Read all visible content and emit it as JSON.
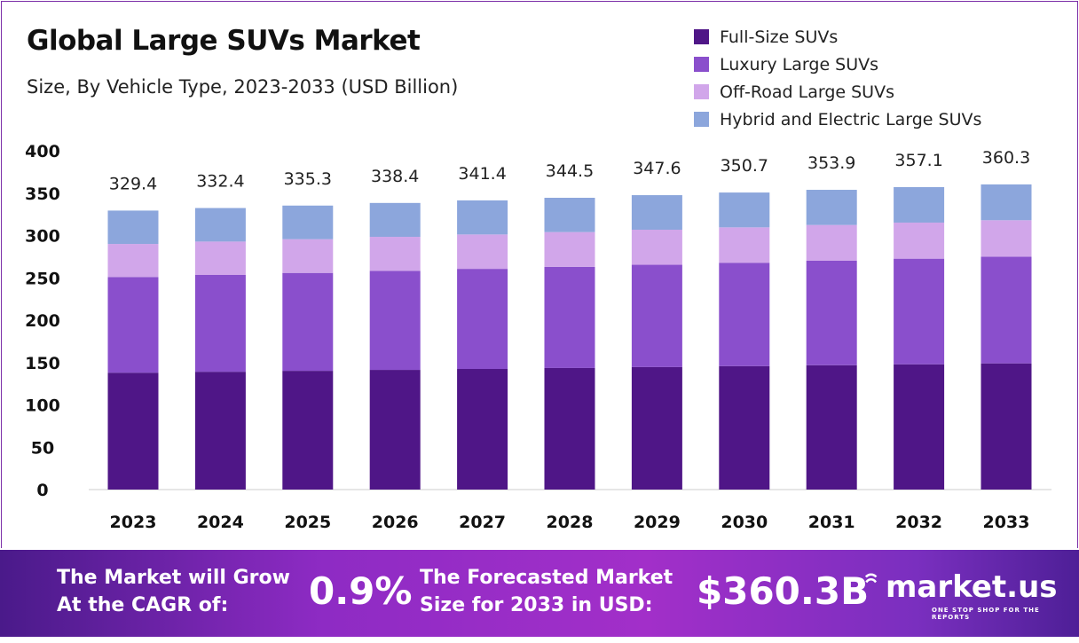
{
  "title": "Global Large SUVs Market",
  "subtitle": "Size, By Vehicle Type, 2023-2033 (USD Billion)",
  "chart_data": {
    "type": "bar",
    "stacked": true,
    "categories": [
      "2023",
      "2024",
      "2025",
      "2026",
      "2027",
      "2028",
      "2029",
      "2030",
      "2031",
      "2032",
      "2033"
    ],
    "totals": [
      329.4,
      332.4,
      335.3,
      338.4,
      341.4,
      344.5,
      347.6,
      350.7,
      353.9,
      357.1,
      360.3
    ],
    "series": [
      {
        "name": "Full-Size SUVs",
        "color": "#4f1687",
        "values": [
          138,
          139.1,
          140.2,
          141.3,
          142.4,
          143.5,
          144.6,
          145.7,
          146.8,
          147.9,
          149
        ]
      },
      {
        "name": "Luxury Large SUVs",
        "color": "#8a4fcc",
        "values": [
          113,
          114.3,
          115.6,
          116.9,
          118.2,
          119.5,
          120.8,
          122.1,
          123.4,
          124.7,
          126
        ]
      },
      {
        "name": "Off-Road Large SUVs",
        "color": "#d1a6ea",
        "values": [
          39,
          39.4,
          39.8,
          40.2,
          40.6,
          41,
          41.4,
          41.8,
          42.2,
          42.6,
          43
        ]
      },
      {
        "name": "Hybrid and Electric Large SUVs",
        "color": "#8ca6dc",
        "values": [
          39.4,
          39.6,
          39.7,
          40,
          40.2,
          40.5,
          40.8,
          41.1,
          41.5,
          41.9,
          42.3
        ]
      }
    ],
    "yticks": [
      0,
      50,
      100,
      150,
      200,
      250,
      300,
      350,
      400
    ],
    "ylim": [
      0,
      400
    ],
    "grid": false,
    "legend": "top-right"
  },
  "banner": {
    "cagr_label": "The Market will Grow At the CAGR of:",
    "cagr_value": "0.9%",
    "forecast_label": "The Forecasted Market Size for 2033 in USD:",
    "forecast_value": "$360.3B",
    "logo": "market.us",
    "logo_tagline": "ONE STOP SHOP FOR THE REPORTS"
  }
}
